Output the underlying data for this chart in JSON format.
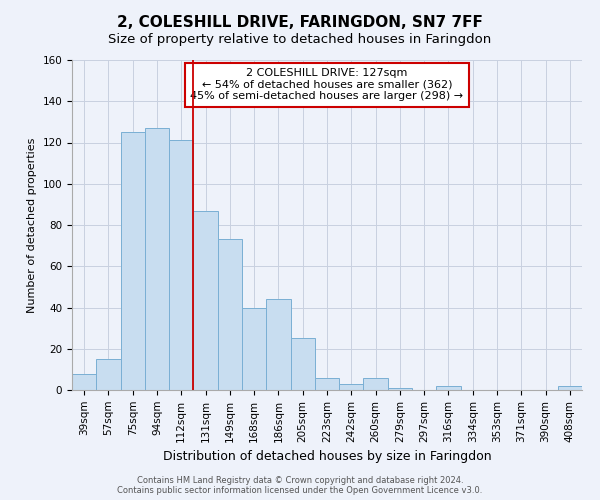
{
  "title": "2, COLESHILL DRIVE, FARINGDON, SN7 7FF",
  "subtitle": "Size of property relative to detached houses in Faringdon",
  "xlabel": "Distribution of detached houses by size in Faringdon",
  "ylabel": "Number of detached properties",
  "bar_labels": [
    "39sqm",
    "57sqm",
    "75sqm",
    "94sqm",
    "112sqm",
    "131sqm",
    "149sqm",
    "168sqm",
    "186sqm",
    "205sqm",
    "223sqm",
    "242sqm",
    "260sqm",
    "279sqm",
    "297sqm",
    "316sqm",
    "334sqm",
    "353sqm",
    "371sqm",
    "390sqm",
    "408sqm"
  ],
  "bar_heights": [
    8,
    15,
    125,
    127,
    121,
    87,
    73,
    40,
    44,
    25,
    6,
    3,
    6,
    1,
    0,
    2,
    0,
    0,
    0,
    0,
    2
  ],
  "bar_color": "#c8ddf0",
  "bar_edge_color": "#7aafd4",
  "ylim": [
    0,
    160
  ],
  "yticks": [
    0,
    20,
    40,
    60,
    80,
    100,
    120,
    140,
    160
  ],
  "vline_x": 4.5,
  "annotation_line1": "2 COLESHILL DRIVE: 127sqm",
  "annotation_line2": "← 54% of detached houses are smaller (362)",
  "annotation_line3": "45% of semi-detached houses are larger (298) →",
  "footer_line1": "Contains HM Land Registry data © Crown copyright and database right 2024.",
  "footer_line2": "Contains public sector information licensed under the Open Government Licence v3.0.",
  "bg_color": "#eef2fa",
  "annotation_box_color": "#ffffff",
  "vline_color": "#cc0000",
  "grid_color": "#c8d0e0",
  "title_fontsize": 11,
  "subtitle_fontsize": 9.5,
  "xlabel_fontsize": 9,
  "ylabel_fontsize": 8,
  "tick_fontsize": 7.5,
  "annot_fontsize": 8
}
